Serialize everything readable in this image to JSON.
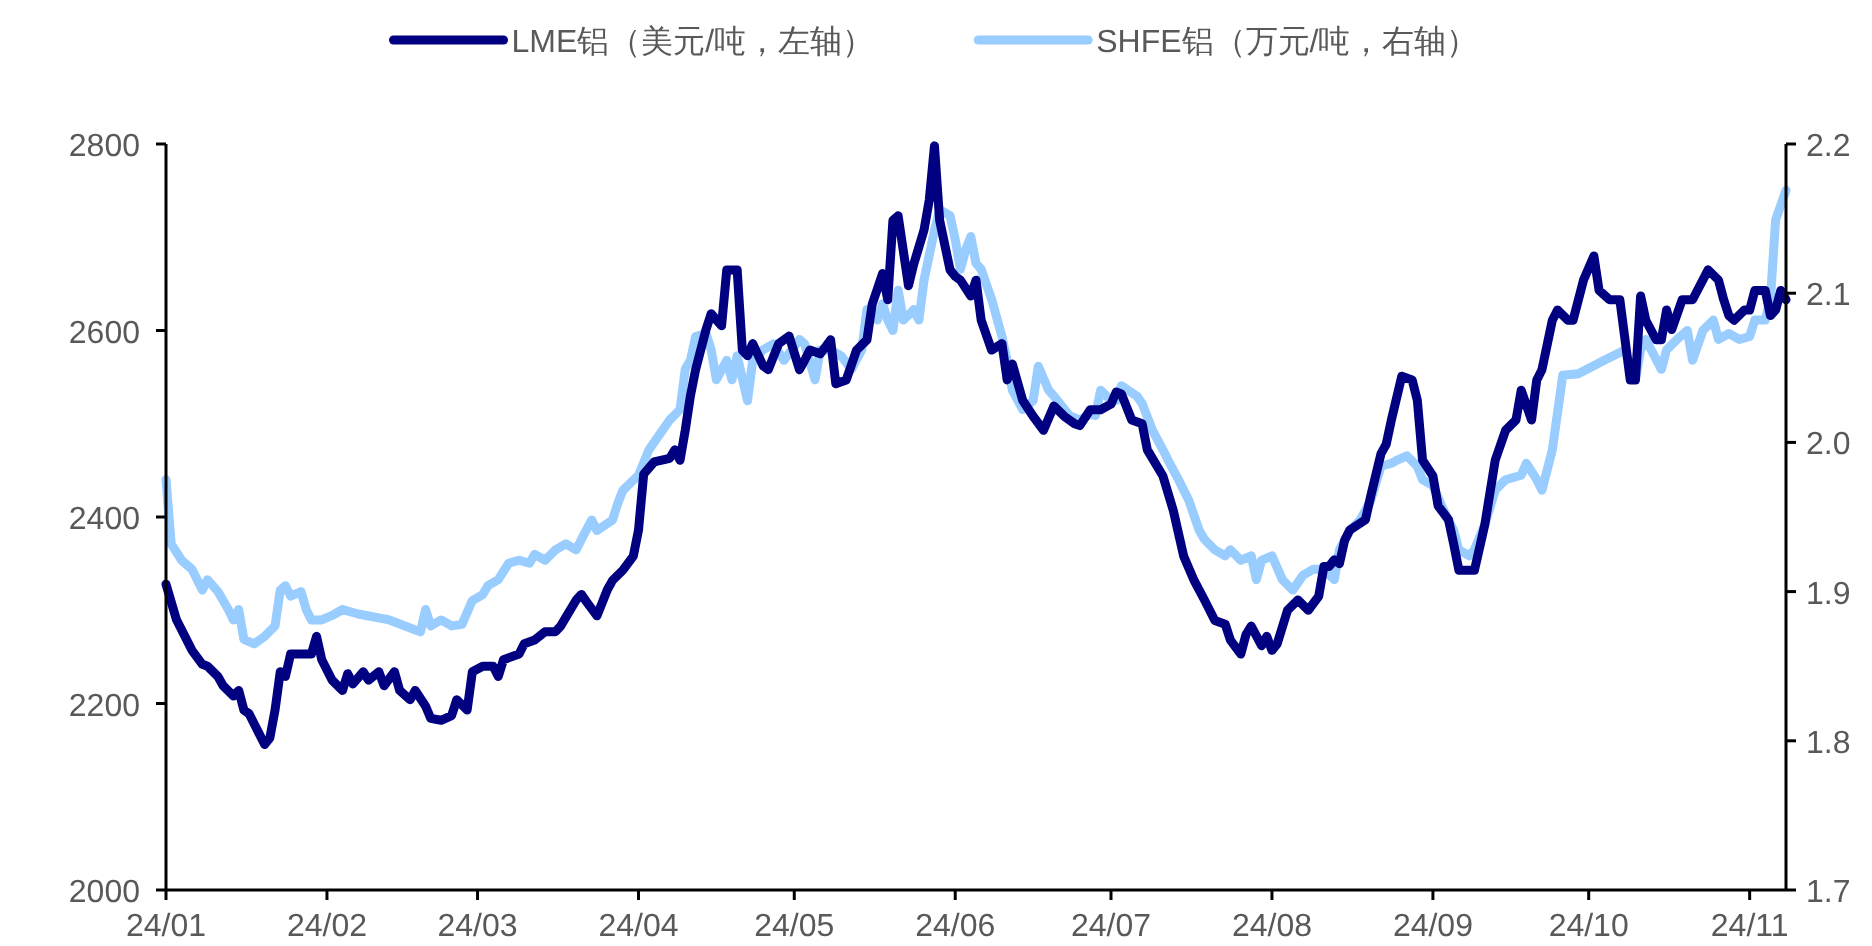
{
  "chart_data": {
    "type": "line",
    "legend": "top",
    "grid": false,
    "xlim": [
      "--01-01",
      "--11-08"
    ],
    "xticks": [
      {
        "value": "--01-01",
        "label": "24/01"
      },
      {
        "value": "--02-01",
        "label": "24/02"
      },
      {
        "value": "--03-01",
        "label": "24/03"
      },
      {
        "value": "--04-01",
        "label": "24/04"
      },
      {
        "value": "--05-01",
        "label": "24/05"
      },
      {
        "value": "--06-01",
        "label": "24/06"
      },
      {
        "value": "--07-01",
        "label": "24/07"
      },
      {
        "value": "--08-01",
        "label": "24/08"
      },
      {
        "value": "--09-01",
        "label": "24/09"
      },
      {
        "value": "--10-01",
        "label": "24/10"
      },
      {
        "value": "--11-01",
        "label": "24/11"
      }
    ],
    "ylim": [
      2000,
      2800
    ],
    "yticks": [
      2000,
      2200,
      2400,
      2600,
      2800
    ],
    "y2lim": [
      1.7,
      2.2
    ],
    "y2ticks": [
      1.7,
      1.8,
      1.9,
      {
        "value": 2,
        "label": "2.0"
      },
      2.1,
      2.2
    ],
    "series": [
      {
        "name": "LME铝（美元/吨，左轴）",
        "color": "#000080",
        "x": [
          "--01-01",
          "--01-03",
          "--01-06",
          "--01-08",
          "--01-09",
          "--01-11",
          "--01-12",
          "--01-14",
          "--01-15",
          "--01-16",
          "--01-17",
          "--01-18",
          "--01-20",
          "--01-21",
          "--01-22",
          "--01-23",
          "--01-24",
          "--01-25",
          "--01-27",
          "--01-29",
          "--01-30",
          "--01-31",
          "--02-02",
          "--02-04",
          "--02-05",
          "--02-06",
          "--02-08",
          "--02-09",
          "--02-11",
          "--02-12",
          "--02-14",
          "--02-15",
          "--02-17",
          "--02-18",
          "--02-20",
          "--02-21",
          "--02-23",
          "--02-25",
          "--02-26",
          "--02-28",
          "--02-29",
          "--03-02",
          "--03-04",
          "--03-05",
          "--03-06",
          "--03-09",
          "--03-10",
          "--03-12",
          "--03-14",
          "--03-16",
          "--03-17",
          "--03-20",
          "--03-21",
          "--03-22",
          "--03-24",
          "--03-26",
          "--03-27",
          "--03-29",
          "--03-31",
          "--04-01",
          "--04-02",
          "--04-04",
          "--04-07",
          "--04-08",
          "--04-09",
          "--04-10",
          "--04-11",
          "--04-12",
          "--04-14",
          "--04-15",
          "--04-17",
          "--04-18",
          "--04-20",
          "--04-21",
          "--04-22",
          "--04-23",
          "--04-25",
          "--04-26",
          "--04-28",
          "--04-29",
          "--04-30",
          "--05-02",
          "--05-03",
          "--05-04",
          "--05-06",
          "--05-08",
          "--05-09",
          "--05-11",
          "--05-13",
          "--05-15",
          "--05-16",
          "--05-18",
          "--05-19",
          "--05-20",
          "--05-21",
          "--05-23",
          "--05-24",
          "--05-26",
          "--05-27",
          "--05-28",
          "--05-29",
          "--05-31",
          "--06-01",
          "--06-02",
          "--06-04",
          "--06-05",
          "--06-06",
          "--06-08",
          "--06-10",
          "--06-11",
          "--06-12",
          "--06-14",
          "--06-16",
          "--06-18",
          "--06-20",
          "--06-22",
          "--06-24",
          "--06-25",
          "--06-27",
          "--06-29",
          "--07-01",
          "--07-02",
          "--07-03",
          "--07-05",
          "--07-07",
          "--07-08",
          "--07-11",
          "--07-13",
          "--07-15",
          "--07-17",
          "--07-19",
          "--07-21",
          "--07-23",
          "--07-24",
          "--07-26",
          "--07-27",
          "--07-28",
          "--07-30",
          "--07-31",
          "--08-01",
          "--08-02",
          "--08-04",
          "--08-06",
          "--08-08",
          "--08-10",
          "--08-11",
          "--08-12",
          "--08-13",
          "--08-14",
          "--08-15",
          "--08-16",
          "--08-19",
          "--08-20",
          "--08-22",
          "--08-23",
          "--08-24",
          "--08-26",
          "--08-28",
          "--08-29",
          "--08-30",
          "--09-01",
          "--09-02",
          "--09-04",
          "--09-05",
          "--09-06",
          "--09-08",
          "--09-09",
          "--09-11",
          "--09-13",
          "--09-15",
          "--09-17",
          "--09-18",
          "--09-20",
          "--09-21",
          "--09-22",
          "--09-24",
          "--09-25",
          "--09-27",
          "--09-28",
          "--09-30",
          "--10-02",
          "--10-03",
          "--10-05",
          "--10-07",
          "--10-09",
          "--10-10",
          "--10-11",
          "--10-12",
          "--10-14",
          "--10-15",
          "--10-16",
          "--10-17",
          "--10-19",
          "--10-21",
          "--10-24",
          "--10-26",
          "--10-27",
          "--10-28",
          "--10-29",
          "--10-31",
          "--11-01",
          "--11-02",
          "--11-04",
          "--11-05",
          "--11-06",
          "--11-07",
          "--11-08"
        ],
        "values": [
          2328,
          2290,
          2257,
          2242,
          2240,
          2229,
          2219,
          2208,
          2214,
          2193,
          2189,
          2178,
          2156,
          2163,
          2193,
          2234,
          2229,
          2253,
          2253,
          2253,
          2272,
          2247,
          2225,
          2214,
          2232,
          2221,
          2234,
          2225,
          2234,
          2219,
          2234,
          2214,
          2204,
          2214,
          2197,
          2184,
          2182,
          2187,
          2204,
          2193,
          2234,
          2240,
          2240,
          2229,
          2247,
          2253,
          2264,
          2268,
          2277,
          2277,
          2283,
          2311,
          2317,
          2309,
          2294,
          2322,
          2332,
          2343,
          2358,
          2386,
          2446,
          2459,
          2463,
          2472,
          2461,
          2493,
          2530,
          2558,
          2601,
          2618,
          2605,
          2665,
          2665,
          2579,
          2573,
          2586,
          2562,
          2558,
          2586,
          2590,
          2594,
          2558,
          2568,
          2579,
          2575,
          2590,
          2543,
          2547,
          2579,
          2590,
          2628,
          2661,
          2633,
          2718,
          2723,
          2648,
          2671,
          2708,
          2740,
          2798,
          2718,
          2665,
          2658,
          2654,
          2637,
          2654,
          2611,
          2579,
          2586,
          2547,
          2564,
          2525,
          2508,
          2493,
          2519,
          2508,
          2500,
          2498,
          2515,
          2515,
          2521,
          2534,
          2532,
          2504,
          2500,
          2472,
          2444,
          2407,
          2358,
          2332,
          2311,
          2289,
          2285,
          2268,
          2253,
          2274,
          2283,
          2262,
          2272,
          2257,
          2264,
          2300,
          2311,
          2300,
          2315,
          2347,
          2347,
          2354,
          2350,
          2375,
          2386,
          2397,
          2422,
          2468,
          2478,
          2504,
          2551,
          2547,
          2525,
          2461,
          2444,
          2412,
          2397,
          2371,
          2343,
          2343,
          2343,
          2392,
          2461,
          2493,
          2504,
          2536,
          2504,
          2547,
          2558,
          2611,
          2622,
          2611,
          2611,
          2654,
          2680,
          2643,
          2633,
          2633,
          2547,
          2547,
          2637,
          2611,
          2590,
          2590,
          2622,
          2601,
          2633,
          2633,
          2665,
          2654,
          2633,
          2616,
          2611,
          2622,
          2622,
          2643,
          2643,
          2616,
          2622,
          2643,
          2633
        ]
      },
      {
        "name": "SHFE铝（万元/吨，右轴）",
        "color": "#99ccff",
        "axis": "y2",
        "x": [
          "--01-01",
          "--01-02",
          "--01-04",
          "--01-06",
          "--01-08",
          "--01-09",
          "--01-11",
          "--01-13",
          "--01-14",
          "--01-15",
          "--01-16",
          "--01-18",
          "--01-20",
          "--01-22",
          "--01-23",
          "--01-24",
          "--01-25",
          "--01-27",
          "--01-28",
          "--01-29",
          "--01-31",
          "--02-02",
          "--02-04",
          "--02-07",
          "--02-13",
          "--02-19",
          "--02-20",
          "--02-21",
          "--02-23",
          "--02-25",
          "--02-27",
          "--02-29",
          "--03-02",
          "--03-03",
          "--03-05",
          "--03-07",
          "--03-09",
          "--03-11",
          "--03-12",
          "--03-14",
          "--03-16",
          "--03-18",
          "--03-20",
          "--03-21",
          "--03-23",
          "--03-24",
          "--03-27",
          "--03-28",
          "--03-29",
          "--04-01",
          "--04-03",
          "--04-07",
          "--04-09",
          "--04-10",
          "--04-11",
          "--04-12",
          "--04-14",
          "--04-15",
          "--04-16",
          "--04-18",
          "--04-19",
          "--04-20",
          "--04-22",
          "--04-23",
          "--04-25",
          "--04-27",
          "--04-29",
          "--05-02",
          "--05-03",
          "--05-05",
          "--05-06",
          "--05-08",
          "--05-10",
          "--05-12",
          "--05-14",
          "--05-15",
          "--05-17",
          "--05-18",
          "--05-19",
          "--05-20",
          "--05-21",
          "--05-22",
          "--05-24",
          "--05-25",
          "--05-26",
          "--05-28",
          "--05-29",
          "--05-31",
          "--06-01",
          "--06-02",
          "--06-03",
          "--06-04",
          "--06-05",
          "--06-06",
          "--06-08",
          "--06-10",
          "--06-11",
          "--06-12",
          "--06-14",
          "--06-16",
          "--06-17",
          "--06-19",
          "--06-20",
          "--06-23",
          "--06-25",
          "--06-27",
          "--06-28",
          "--06-29",
          "--07-01",
          "--07-02",
          "--07-03",
          "--07-06",
          "--07-07",
          "--07-09",
          "--07-11",
          "--07-12",
          "--07-14",
          "--07-16",
          "--07-18",
          "--07-19",
          "--07-21",
          "--07-23",
          "--07-24",
          "--07-26",
          "--07-28",
          "--07-29",
          "--07-30",
          "--08-01",
          "--08-03",
          "--08-05",
          "--08-07",
          "--08-09",
          "--08-11",
          "--08-13",
          "--08-14",
          "--08-16",
          "--08-18",
          "--08-20",
          "--08-22",
          "--08-24",
          "--08-25",
          "--08-27",
          "--08-29",
          "--08-30",
          "--09-01",
          "--09-03",
          "--09-05",
          "--09-06",
          "--09-08",
          "--09-09",
          "--09-11",
          "--09-13",
          "--09-15",
          "--09-18",
          "--09-19",
          "--09-21",
          "--09-22",
          "--09-24",
          "--09-26",
          "--09-29",
          "--10-04",
          "--10-08",
          "--10-10",
          "--10-11",
          "--10-12",
          "--10-15",
          "--10-16",
          "--10-18",
          "--10-20",
          "--10-21",
          "--10-23",
          "--10-25",
          "--10-26",
          "--10-28",
          "--10-30",
          "--11-01",
          "--11-02",
          "--11-04",
          "--11-05",
          "--11-06",
          "--11-08"
        ],
        "values": [
          1.975,
          1.932,
          1.921,
          1.915,
          1.901,
          1.908,
          1.9,
          1.888,
          1.881,
          1.888,
          1.868,
          1.865,
          1.87,
          1.877,
          1.901,
          1.904,
          1.897,
          1.9,
          1.888,
          1.881,
          1.881,
          1.884,
          1.888,
          1.885,
          1.881,
          1.873,
          1.888,
          1.877,
          1.881,
          1.877,
          1.878,
          1.894,
          1.898,
          1.904,
          1.908,
          1.919,
          1.921,
          1.919,
          1.925,
          1.921,
          1.928,
          1.932,
          1.928,
          1.935,
          1.948,
          1.941,
          1.948,
          1.959,
          1.968,
          1.978,
          1.995,
          2.015,
          2.022,
          2.049,
          2.055,
          2.071,
          2.073,
          2.062,
          2.042,
          2.055,
          2.042,
          2.058,
          2.028,
          2.055,
          2.062,
          2.066,
          2.055,
          2.069,
          2.066,
          2.042,
          2.062,
          2.062,
          2.058,
          2.049,
          2.062,
          2.089,
          2.082,
          2.093,
          2.082,
          2.075,
          2.102,
          2.082,
          2.089,
          2.082,
          2.109,
          2.142,
          2.156,
          2.152,
          2.136,
          2.116,
          2.129,
          2.138,
          2.12,
          2.116,
          2.096,
          2.071,
          2.055,
          2.035,
          2.022,
          2.028,
          2.051,
          2.035,
          2.031,
          2.018,
          2.015,
          2.019,
          2.018,
          2.035,
          2.028,
          2.028,
          2.038,
          2.031,
          2.026,
          2.008,
          1.995,
          1.988,
          1.975,
          1.961,
          1.941,
          1.935,
          1.928,
          1.924,
          1.928,
          1.921,
          1.924,
          1.908,
          1.921,
          1.924,
          1.908,
          1.901,
          1.911,
          1.915,
          1.915,
          1.908,
          1.928,
          1.941,
          1.948,
          1.961,
          1.984,
          1.986,
          1.988,
          1.991,
          1.984,
          1.975,
          1.971,
          1.955,
          1.941,
          1.928,
          1.924,
          1.928,
          1.945,
          1.968,
          1.975,
          1.978,
          1.986,
          1.975,
          1.968,
          1.995,
          2.045,
          2.046,
          2.055,
          2.062,
          2.042,
          2.062,
          2.069,
          2.049,
          2.062,
          2.069,
          2.075,
          2.055,
          2.075,
          2.082,
          2.069,
          2.073,
          2.069,
          2.071,
          2.082,
          2.082,
          2.096,
          2.149,
          2.169
        ]
      }
    ]
  }
}
